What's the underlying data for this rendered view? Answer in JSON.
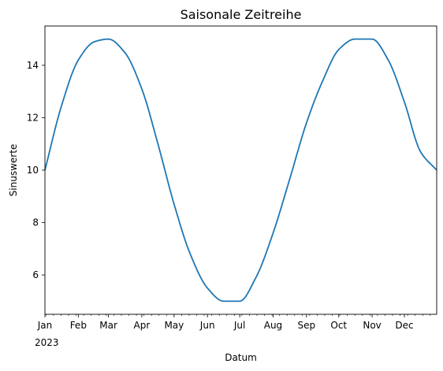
{
  "chart_data": {
    "type": "line",
    "title": "Saisonale Zeitreihe",
    "xlabel": "Datum",
    "ylabel": "Sinuswerte",
    "x_tick_labels": [
      "Jan",
      "Feb",
      "Mar",
      "Apr",
      "May",
      "Jun",
      "Jul",
      "Aug",
      "Sep",
      "Oct",
      "Nov",
      "Dec"
    ],
    "x_year_label": "2023",
    "xlim": [
      "2023-01-01",
      "2023-12-31"
    ],
    "y_ticks": [
      6,
      8,
      10,
      12,
      14
    ],
    "ylim": [
      4.5,
      15.5
    ],
    "grid": false,
    "series": [
      {
        "color": "#1f77b4",
        "x": [
          "2023-01-01",
          "2023-01-16",
          "2023-02-01",
          "2023-02-16",
          "2023-03-01",
          "2023-03-16",
          "2023-04-01",
          "2023-04-16",
          "2023-05-01",
          "2023-05-16",
          "2023-06-01",
          "2023-06-16",
          "2023-07-01",
          "2023-07-16",
          "2023-08-01",
          "2023-08-16",
          "2023-09-01",
          "2023-09-16",
          "2023-10-01",
          "2023-10-16",
          "2023-11-01",
          "2023-11-16",
          "2023-12-01",
          "2023-12-16",
          "2023-12-31"
        ],
        "y": [
          10.0,
          12.4,
          14.2,
          14.9,
          15.0,
          14.5,
          13.1,
          11.0,
          8.7,
          6.8,
          5.5,
          5.0,
          5.0,
          5.9,
          7.6,
          9.6,
          11.8,
          13.4,
          14.6,
          15.0,
          15.0,
          14.2,
          12.6,
          10.7,
          10.0
        ]
      }
    ]
  }
}
